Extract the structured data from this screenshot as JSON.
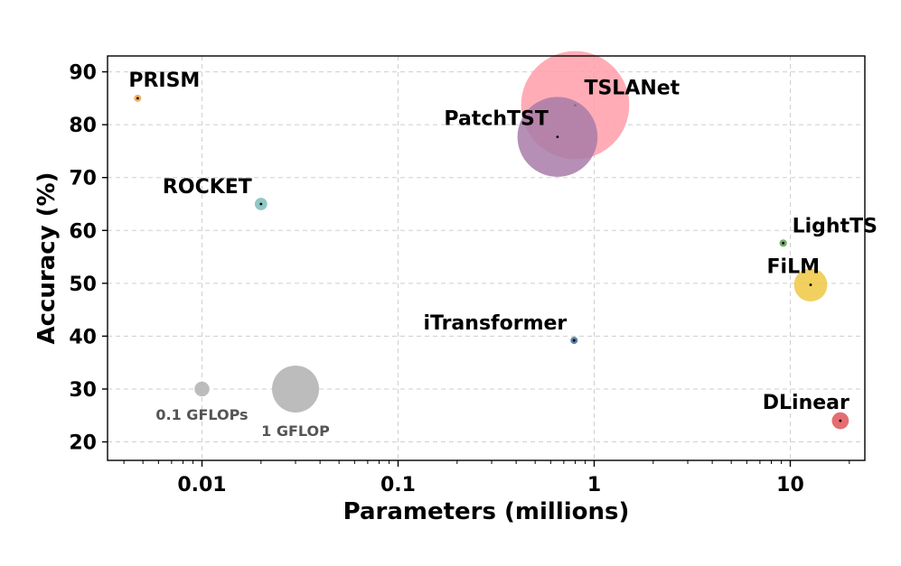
{
  "chart_data": {
    "type": "scatter",
    "title": "",
    "xlabel": "Parameters (millions)",
    "ylabel": "Accuracy (%)",
    "xscale": "log",
    "xlim": [
      0.0033,
      24
    ],
    "ylim": [
      16.5,
      93
    ],
    "grid": true,
    "x_ticks": [
      0.01,
      0.1,
      1,
      10
    ],
    "x_tick_labels": [
      "0.01",
      "0.1",
      "1",
      "10"
    ],
    "y_ticks": [
      20,
      30,
      40,
      50,
      60,
      70,
      80,
      90
    ],
    "y_tick_labels": [
      "20",
      "30",
      "40",
      "50",
      "60",
      "70",
      "80",
      "90"
    ],
    "points": [
      {
        "label": "PRISM",
        "x": 0.0047,
        "y": 85.0,
        "flops": 0.0013,
        "color": "#f5a142",
        "label_pos": "above-right"
      },
      {
        "label": "ROCKET",
        "x": 0.02,
        "y": 65.0,
        "flops": 0.07,
        "color": "#7dbdba",
        "label_pos": "above-left"
      },
      {
        "label": "PatchTST",
        "x": 0.65,
        "y": 77.7,
        "flops": 2.9,
        "color": "#a87ba8",
        "label_pos": "above-left"
      },
      {
        "label": "TSLANet",
        "x": 0.8,
        "y": 83.7,
        "flops": 5.3,
        "color": "#ff9ea9",
        "label_pos": "right"
      },
      {
        "label": "LightTS",
        "x": 9.2,
        "y": 57.6,
        "flops": 0.025,
        "color": "#5aa050",
        "label_pos": "above-right"
      },
      {
        "label": "FiLM",
        "x": 12.7,
        "y": 49.7,
        "flops": 0.5,
        "color": "#eec843",
        "label_pos": "above-left"
      },
      {
        "label": "iTransformer",
        "x": 0.79,
        "y": 39.2,
        "flops": 0.003,
        "color": "#3f6a9a",
        "label_pos": "above-left"
      },
      {
        "label": "DLinear",
        "x": 18.0,
        "y": 24.0,
        "flops": 0.13,
        "color": "#e05459",
        "label_pos": "above-left"
      }
    ],
    "size_legend": [
      {
        "label": "0.1 GFLOPs",
        "x": 0.01,
        "y": 30,
        "flops": 0.1,
        "color": "#b8b8b8"
      },
      {
        "label": "1 GFLOP",
        "x": 0.03,
        "y": 30,
        "flops": 1,
        "color": "#b8b8b8"
      }
    ]
  }
}
